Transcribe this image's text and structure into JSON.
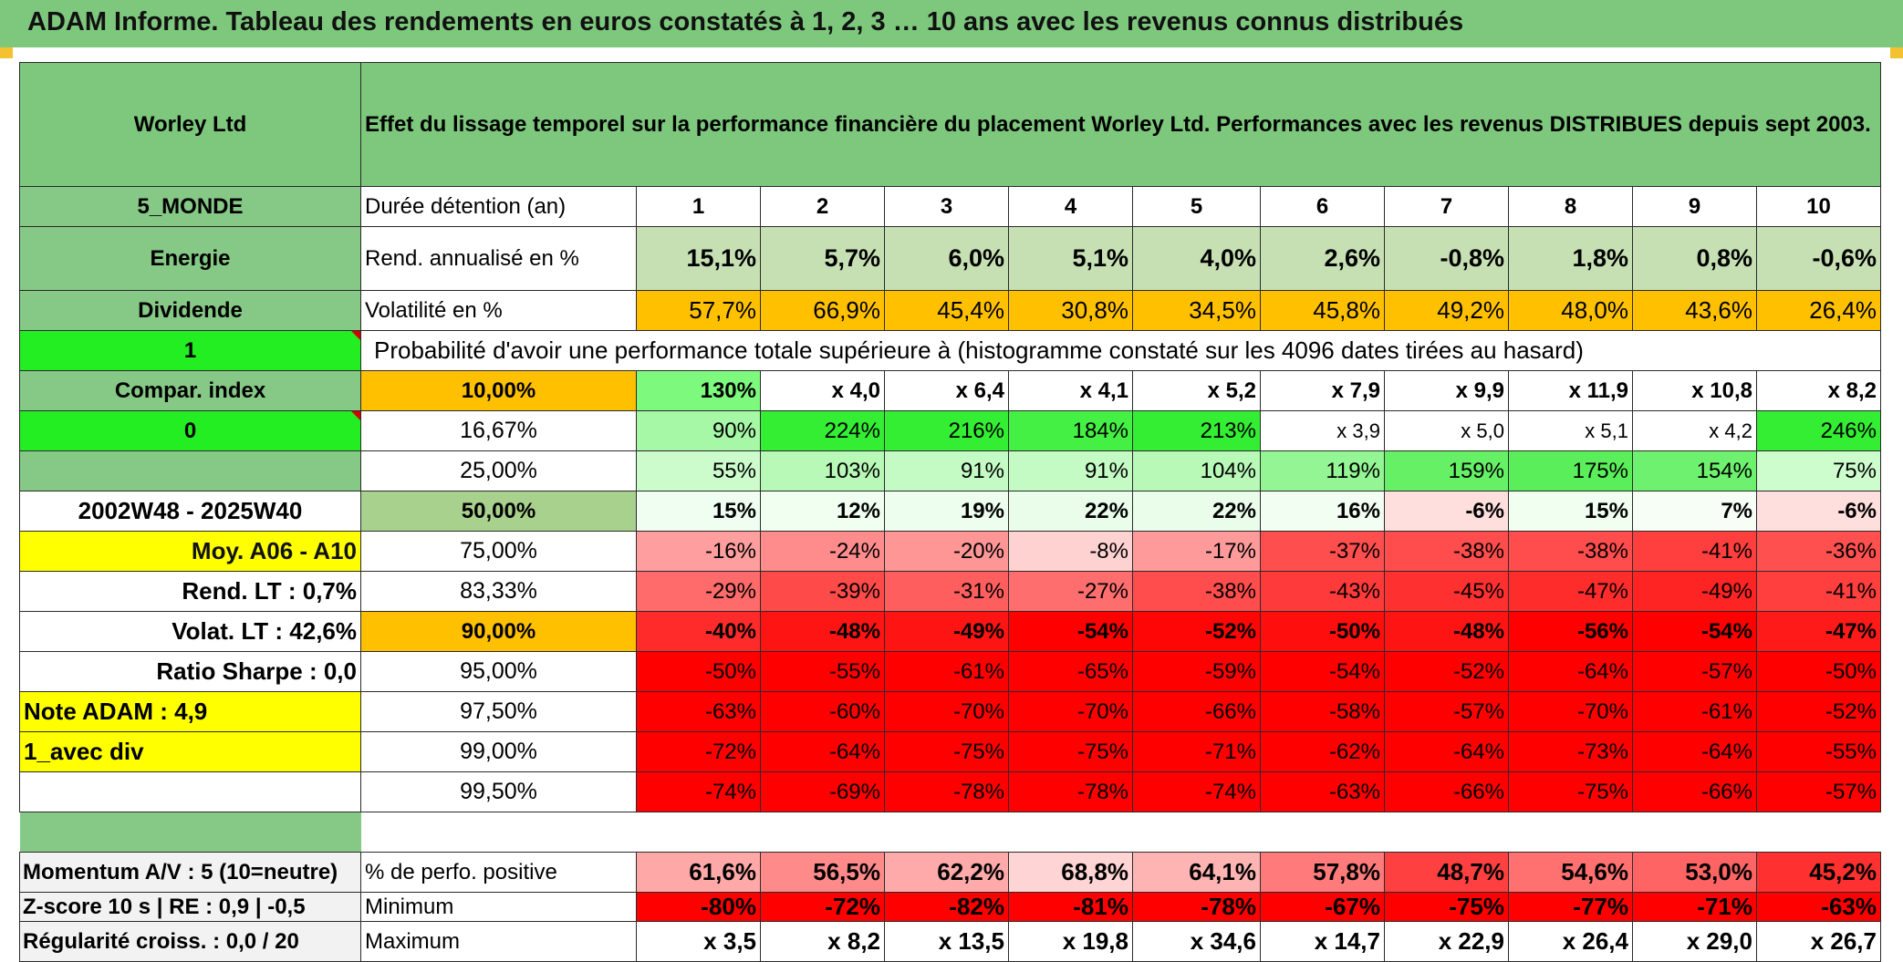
{
  "title": "ADAM Informe. Tableau des rendements en euros constatés à 1, 2, 3 … 10 ans avec les revenus connus distribués",
  "company": "Worley Ltd",
  "description": "Effet du lissage temporel sur la performance financière du placement Worley Ltd. Performances avec les revenus DISTRIBUES depuis sept 2003.",
  "sidebar": {
    "region": "5_MONDE",
    "sector": "Energie",
    "type": "Dividende",
    "value_1": "1",
    "compar_index": "Compar. index",
    "value_0": "0",
    "period": "2002W48 - 2025W40",
    "moy": "Moy. A06 - A10",
    "rend_lt": "Rend. LT :   0,7%",
    "volat_lt": "Volat. LT :   42,6%",
    "sharpe": "Ratio Sharpe :    0,0",
    "note": "Note ADAM : 4,9",
    "div": "1_avec div",
    "momentum": "Momentum A/V : 5 (10=neutre)",
    "zscore": "Z-score 10 s | RE : 0,9 | -0,5",
    "regularite": "Régularité croiss. : 0,0 / 20"
  },
  "duree_label": "Durée détention (an)",
  "years": [
    "1",
    "2",
    "3",
    "4",
    "5",
    "6",
    "7",
    "8",
    "9",
    "10"
  ],
  "rend_label": "Rend. annualisé en %",
  "rend": [
    "15,1%",
    "5,7%",
    "6,0%",
    "5,1%",
    "4,0%",
    "2,6%",
    "-0,8%",
    "1,8%",
    "0,8%",
    "-0,6%"
  ],
  "vol_label": "Volatilité en %",
  "vol": [
    "57,7%",
    "66,9%",
    "45,4%",
    "30,8%",
    "34,5%",
    "45,8%",
    "49,2%",
    "48,0%",
    "43,6%",
    "26,4%"
  ],
  "prob_label": "Probabilité d'avoir une performance totale supérieure à (histogramme constaté sur les 4096 dates tirées au hasard)",
  "quantiles": [
    {
      "p": "10,00%",
      "v": [
        "130%",
        "x 4,0",
        "x 6,4",
        "x 4,1",
        "x 5,2",
        "x 7,9",
        "x 9,9",
        "x 11,9",
        "x 10,8",
        "x 8,2"
      ]
    },
    {
      "p": "16,67%",
      "v": [
        "90%",
        "224%",
        "216%",
        "184%",
        "213%",
        "x 3,9",
        "x 5,0",
        "x 5,1",
        "x 4,2",
        "246%"
      ]
    },
    {
      "p": "25,00%",
      "v": [
        "55%",
        "103%",
        "91%",
        "91%",
        "104%",
        "119%",
        "159%",
        "175%",
        "154%",
        "75%"
      ]
    },
    {
      "p": "50,00%",
      "v": [
        "15%",
        "12%",
        "19%",
        "22%",
        "22%",
        "16%",
        "-6%",
        "15%",
        "7%",
        "-6%"
      ]
    },
    {
      "p": "75,00%",
      "v": [
        "-16%",
        "-24%",
        "-20%",
        "-8%",
        "-17%",
        "-37%",
        "-38%",
        "-38%",
        "-41%",
        "-36%"
      ]
    },
    {
      "p": "83,33%",
      "v": [
        "-29%",
        "-39%",
        "-31%",
        "-27%",
        "-38%",
        "-43%",
        "-45%",
        "-47%",
        "-49%",
        "-41%"
      ]
    },
    {
      "p": "90,00%",
      "v": [
        "-40%",
        "-48%",
        "-49%",
        "-54%",
        "-52%",
        "-50%",
        "-48%",
        "-56%",
        "-54%",
        "-47%"
      ]
    },
    {
      "p": "95,00%",
      "v": [
        "-50%",
        "-55%",
        "-61%",
        "-65%",
        "-59%",
        "-54%",
        "-52%",
        "-64%",
        "-57%",
        "-50%"
      ]
    },
    {
      "p": "97,50%",
      "v": [
        "-63%",
        "-60%",
        "-70%",
        "-70%",
        "-66%",
        "-58%",
        "-57%",
        "-70%",
        "-61%",
        "-52%"
      ]
    },
    {
      "p": "99,00%",
      "v": [
        "-72%",
        "-64%",
        "-75%",
        "-75%",
        "-71%",
        "-62%",
        "-64%",
        "-73%",
        "-64%",
        "-55%"
      ]
    },
    {
      "p": "99,50%",
      "v": [
        "-74%",
        "-69%",
        "-78%",
        "-78%",
        "-74%",
        "-63%",
        "-66%",
        "-75%",
        "-66%",
        "-57%"
      ]
    }
  ],
  "pos_label": "% de perfo. positive",
  "pos": [
    "61,6%",
    "56,5%",
    "62,2%",
    "68,8%",
    "64,1%",
    "57,8%",
    "48,7%",
    "54,6%",
    "53,0%",
    "45,2%"
  ],
  "min_label": "Minimum",
  "min": [
    "-80%",
    "-72%",
    "-82%",
    "-81%",
    "-78%",
    "-67%",
    "-75%",
    "-77%",
    "-71%",
    "-63%"
  ],
  "max_label": "Maximum",
  "max": [
    "x 3,5",
    "x 8,2",
    "x 13,5",
    "x 19,8",
    "x 34,6",
    "x 14,7",
    "x 22,9",
    "x 26,4",
    "x 29,0",
    "x 26,7"
  ],
  "colors": {
    "header_green": "#7dc87d",
    "rend_green": "#c6e0b4",
    "vol_orange": "#ffc000",
    "bright_green": "#22ee22",
    "highlight_yellow": "#ffff00",
    "strong_red": "#ff0000"
  }
}
